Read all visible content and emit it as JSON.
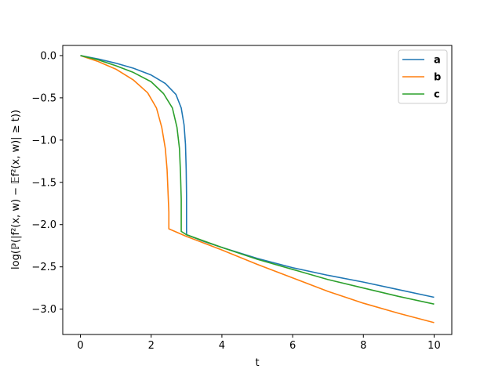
{
  "chart_data": {
    "type": "line",
    "title": "",
    "xlabel": "t",
    "ylabel": "log(ℙ(|f²(x, w) − 𝔼f²(x, w)| ≥ t))",
    "xlim": [
      -0.5,
      10.5
    ],
    "ylim": [
      -3.3,
      0.12
    ],
    "xticks": [
      0,
      2,
      4,
      6,
      8,
      10
    ],
    "yticks": [
      0.0,
      -0.5,
      -1.0,
      -1.5,
      -2.0,
      -2.5,
      -3.0
    ],
    "xtick_labels": [
      "0",
      "2",
      "4",
      "6",
      "8",
      "10"
    ],
    "ytick_labels": [
      "0.0",
      "−0.5",
      "−1.0",
      "−1.5",
      "−2.0",
      "−2.5",
      "−3.0"
    ],
    "grid": false,
    "legend_position": "top-right",
    "series": [
      {
        "name": "a",
        "color": "#1f77b4",
        "x": [
          0,
          0.5,
          1.0,
          1.5,
          2.0,
          2.4,
          2.7,
          2.85,
          2.93,
          2.97,
          2.99,
          3.0,
          3.0,
          3.5,
          4.0,
          5.0,
          6.0,
          7.0,
          8.0,
          9.0,
          10.0
        ],
        "y": [
          0.0,
          -0.04,
          -0.09,
          -0.15,
          -0.23,
          -0.33,
          -0.46,
          -0.62,
          -0.82,
          -1.05,
          -1.35,
          -1.65,
          -2.12,
          -2.2,
          -2.27,
          -2.4,
          -2.51,
          -2.6,
          -2.68,
          -2.77,
          -2.86
        ]
      },
      {
        "name": "b",
        "color": "#ff7f0e",
        "x": [
          0,
          0.5,
          1.0,
          1.5,
          1.9,
          2.15,
          2.3,
          2.4,
          2.45,
          2.48,
          2.5,
          2.5,
          3.0,
          4.0,
          5.0,
          6.0,
          7.0,
          8.0,
          9.0,
          10.0
        ],
        "y": [
          0.0,
          -0.07,
          -0.16,
          -0.29,
          -0.44,
          -0.62,
          -0.85,
          -1.1,
          -1.35,
          -1.65,
          -1.85,
          -2.05,
          -2.14,
          -2.3,
          -2.47,
          -2.63,
          -2.79,
          -2.93,
          -3.05,
          -3.16
        ]
      },
      {
        "name": "c",
        "color": "#2ca02c",
        "x": [
          0,
          0.5,
          1.0,
          1.5,
          2.0,
          2.35,
          2.6,
          2.73,
          2.8,
          2.83,
          2.85,
          2.85,
          3.0,
          4.0,
          5.0,
          6.0,
          7.0,
          8.0,
          9.0,
          10.0
        ],
        "y": [
          0.0,
          -0.05,
          -0.12,
          -0.2,
          -0.31,
          -0.45,
          -0.62,
          -0.85,
          -1.1,
          -1.4,
          -1.7,
          -2.08,
          -2.12,
          -2.27,
          -2.41,
          -2.53,
          -2.65,
          -2.75,
          -2.85,
          -2.94
        ]
      }
    ]
  }
}
